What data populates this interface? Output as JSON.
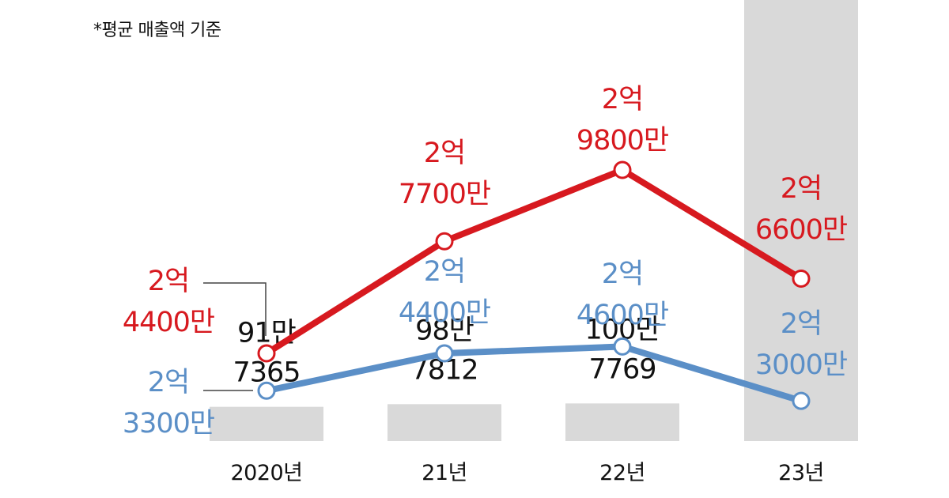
{
  "note": "*평균 매출액 기준",
  "colors": {
    "bar": "#d9d9d9",
    "red": "#d7191f",
    "blue": "#5b8fc7",
    "text": "#111111"
  },
  "chart_data": {
    "type": "bar",
    "categories": [
      "2020년",
      "21년",
      "22년",
      "23년"
    ],
    "series": [
      {
        "type": "bar",
        "values": [
          917365,
          987812,
          1007769,
          null
        ],
        "labels": [
          [
            "91만",
            "7365"
          ],
          [
            "98만",
            "7812"
          ],
          [
            "100만",
            "7769"
          ],
          [
            "",
            ""
          ]
        ]
      },
      {
        "type": "line",
        "values": [
          24400,
          27700,
          29800,
          26600
        ],
        "labels": [
          [
            "2억",
            "4400만"
          ],
          [
            "2억",
            "7700만"
          ],
          [
            "2억",
            "9800만"
          ],
          [
            "2억",
            "6600만"
          ]
        ]
      },
      {
        "type": "line",
        "values": [
          23300,
          24400,
          24600,
          23000
        ],
        "labels": [
          [
            "2억",
            "3300만"
          ],
          [
            "2억",
            "4400만"
          ],
          [
            "2억",
            "4600만"
          ],
          [
            "2억",
            "3000만"
          ]
        ]
      }
    ]
  }
}
